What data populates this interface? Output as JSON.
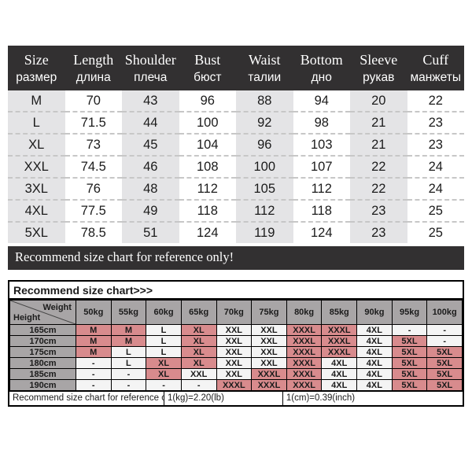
{
  "colors": {
    "dark_bg": "#323031",
    "stripe_bg": "#e4e4e6",
    "gray_bg": "#a8a5a6",
    "pink_bg": "#d88b8d"
  },
  "size_table": {
    "columns": [
      {
        "en": "Size",
        "ru": "размер"
      },
      {
        "en": "Length",
        "ru": "длина"
      },
      {
        "en": "Shoulder",
        "ru": "плеча"
      },
      {
        "en": "Bust",
        "ru": "бюст"
      },
      {
        "en": "Waist",
        "ru": "талии"
      },
      {
        "en": "Bottom",
        "ru": "дно"
      },
      {
        "en": "Sleeve",
        "ru": "рукав"
      },
      {
        "en": "Cuff",
        "ru": "манжеты"
      }
    ],
    "rows": [
      [
        "M",
        "70",
        "43",
        "96",
        "88",
        "94",
        "20",
        "22"
      ],
      [
        "L",
        "71.5",
        "44",
        "100",
        "92",
        "98",
        "21",
        "23"
      ],
      [
        "XL",
        "73",
        "45",
        "104",
        "96",
        "103",
        "21",
        "23"
      ],
      [
        "XXL",
        "74.5",
        "46",
        "108",
        "100",
        "107",
        "22",
        "24"
      ],
      [
        "3XL",
        "76",
        "48",
        "112",
        "105",
        "112",
        "22",
        "24"
      ],
      [
        "4XL",
        "77.5",
        "49",
        "118",
        "112",
        "118",
        "23",
        "25"
      ],
      [
        "5XL",
        "78.5",
        "51",
        "124",
        "119",
        "124",
        "23",
        "25"
      ]
    ]
  },
  "banner": {
    "text": "Recommend size chart for reference only!"
  },
  "recommend_table": {
    "title": "Recommend size chart>>>",
    "corner": {
      "left": "Height",
      "right": "Weight"
    },
    "weights": [
      "50kg",
      "55kg",
      "60kg",
      "65kg",
      "70kg",
      "75kg",
      "80kg",
      "85kg",
      "90kg",
      "95kg",
      "100kg"
    ],
    "rows": [
      {
        "height": "165cm",
        "sizes": [
          "M",
          "M",
          "L",
          "XL",
          "XXL",
          "XXL",
          "XXXL",
          "XXXL",
          "4XL",
          "-",
          "-"
        ],
        "highlighted": [
          true,
          true,
          false,
          true,
          false,
          false,
          true,
          true,
          false,
          false,
          false
        ]
      },
      {
        "height": "170cm",
        "sizes": [
          "M",
          "M",
          "L",
          "XL",
          "XXL",
          "XXL",
          "XXXL",
          "XXXL",
          "4XL",
          "5XL",
          "-"
        ],
        "highlighted": [
          true,
          true,
          false,
          true,
          false,
          false,
          true,
          true,
          false,
          true,
          false
        ]
      },
      {
        "height": "175cm",
        "sizes": [
          "M",
          "L",
          "L",
          "XL",
          "XXL",
          "XXL",
          "XXXL",
          "XXXL",
          "4XL",
          "5XL",
          "5XL"
        ],
        "highlighted": [
          true,
          false,
          false,
          true,
          false,
          false,
          true,
          true,
          false,
          true,
          true
        ]
      },
      {
        "height": "180cm",
        "sizes": [
          "-",
          "L",
          "XL",
          "XL",
          "XXL",
          "XXL",
          "XXXL",
          "4XL",
          "4XL",
          "5XL",
          "5XL"
        ],
        "highlighted": [
          false,
          false,
          true,
          true,
          false,
          false,
          true,
          false,
          false,
          true,
          true
        ]
      },
      {
        "height": "185cm",
        "sizes": [
          "-",
          "-",
          "XL",
          "XXL",
          "XXL",
          "XXXL",
          "XXXL",
          "4XL",
          "4XL",
          "5XL",
          "5XL"
        ],
        "highlighted": [
          false,
          false,
          true,
          false,
          false,
          true,
          true,
          false,
          false,
          true,
          true
        ]
      },
      {
        "height": "190cm",
        "sizes": [
          "-",
          "-",
          "-",
          "-",
          "XXXL",
          "XXXL",
          "XXXL",
          "4XL",
          "4XL",
          "5XL",
          "5XL"
        ],
        "highlighted": [
          false,
          false,
          false,
          false,
          true,
          true,
          true,
          false,
          false,
          true,
          true
        ]
      }
    ],
    "footer": [
      "Recommend size chart for reference only!",
      "1(kg)=2.20(lb)",
      "1(cm)=0.39(inch)"
    ]
  }
}
